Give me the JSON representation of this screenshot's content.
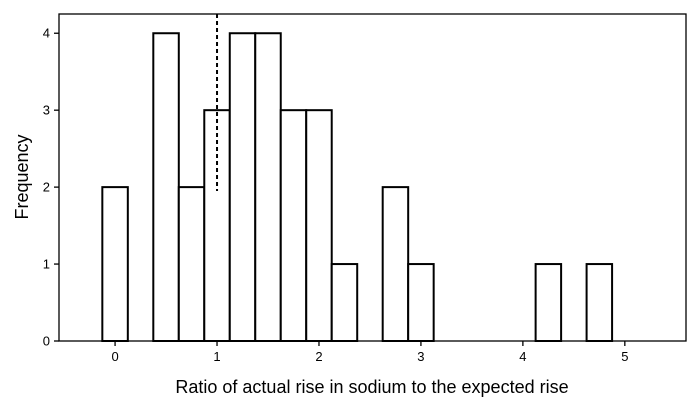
{
  "chart_data": {
    "type": "bar",
    "title": "",
    "xlabel": "Ratio of actual rise in sodium to the expected rise",
    "ylabel": "Frequency",
    "xlim": [
      -0.55,
      5.6
    ],
    "ylim": [
      0,
      4.25
    ],
    "bin_width": 0.25,
    "xticks": [
      "0",
      "1",
      "2",
      "3",
      "4",
      "5"
    ],
    "yticks": [
      "0",
      "1",
      "2",
      "3",
      "4"
    ],
    "x": [
      0.0,
      0.5,
      0.75,
      1.0,
      1.25,
      1.5,
      1.75,
      2.0,
      2.25,
      2.75,
      3.0,
      4.25,
      4.75
    ],
    "values": [
      2,
      4,
      2,
      3,
      4,
      4,
      3,
      3,
      1,
      2,
      1,
      1,
      1
    ],
    "reference_line": {
      "x": 1,
      "style": "dashed"
    },
    "grid": false,
    "colors": {
      "bar_fill": "#ffffff",
      "bar_stroke": "#000000",
      "axis": "#000000"
    }
  }
}
